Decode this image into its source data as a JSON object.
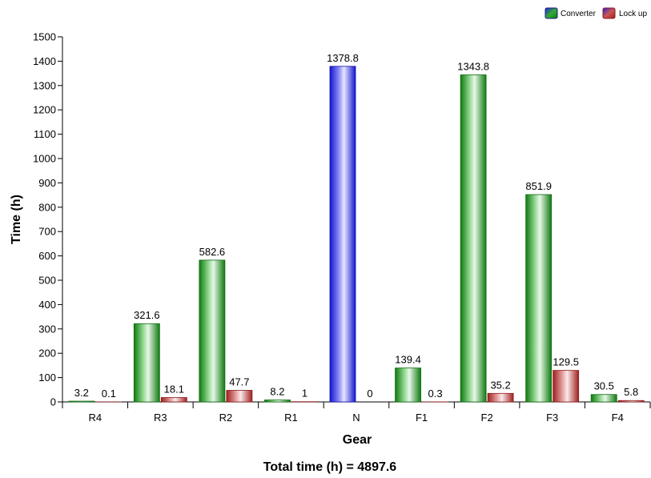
{
  "chart_data": {
    "type": "bar",
    "xlabel": "Gear",
    "ylabel": "Time (h)",
    "footer": "Total time (h) = 4897.6",
    "ylim": [
      0,
      1500
    ],
    "ytick_step": 100,
    "grid": false,
    "legend_position": "top-right",
    "categories": [
      "R4",
      "R3",
      "R2",
      "R1",
      "N",
      "F1",
      "F2",
      "F3",
      "F4"
    ],
    "series": [
      {
        "name": "Converter",
        "color": "#1a8a1a",
        "values": [
          3.2,
          321.6,
          582.6,
          8.2,
          1378.8,
          139.4,
          1343.8,
          851.9,
          30.5
        ],
        "labels": [
          "3.2",
          "321.6",
          "582.6",
          "8.2",
          "1378.8",
          "139.4",
          "1343.8",
          "851.9",
          "30.5"
        ]
      },
      {
        "name": "Lock up",
        "color": "#b03030",
        "values": [
          0.1,
          18.1,
          47.7,
          1,
          0,
          0.3,
          35.2,
          129.5,
          5.8
        ],
        "labels": [
          "0.1",
          "18.1",
          "47.7",
          "1",
          "0",
          "0.3",
          "35.2",
          "129.5",
          "5.8"
        ]
      }
    ],
    "highlight": {
      "category": "N",
      "series": "Converter",
      "color": "#2020e0"
    },
    "legend_swatch_accent": "#2020e0"
  }
}
